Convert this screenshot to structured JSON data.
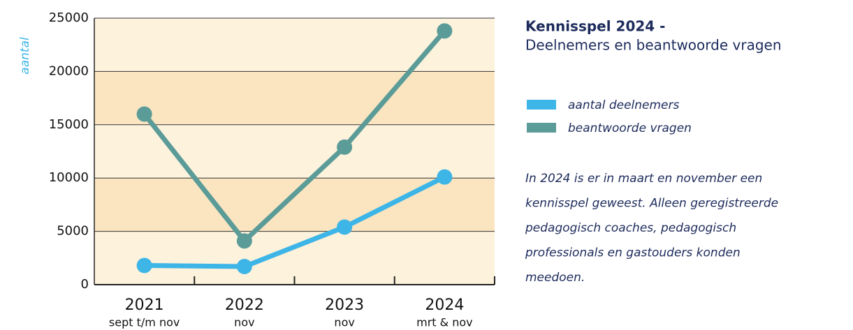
{
  "chart_data": {
    "type": "line",
    "title": "Kennisspel 2024 -",
    "subtitle": "Deelnemers en beantwoorde vragen",
    "y_label": "aantal",
    "categories": [
      "2021",
      "2022",
      "2023",
      "2024"
    ],
    "category_sublabels": [
      "sept t/m nov",
      "nov",
      "nov",
      "mrt & nov"
    ],
    "series": [
      {
        "name": "aantal deelnemers",
        "color": "#3db5e6",
        "values": [
          1800,
          1700,
          5400,
          10100
        ]
      },
      {
        "name": "beantwoorde vragen",
        "color": "#5b9b98",
        "values": [
          16000,
          4100,
          12900,
          23800
        ]
      }
    ],
    "ylim": [
      0,
      25000
    ],
    "yticks": [
      0,
      5000,
      10000,
      15000,
      20000,
      25000
    ],
    "grid": true,
    "band_colors": [
      "#fdf2dc",
      "#fbe5c1"
    ],
    "annotation": [
      "In 2024 is er in maart en november een",
      "kennisspel geweest. Alleen geregistreerde",
      "pedagogisch coaches, pedagogisch",
      "professionals en gastouders konden",
      "meedoen."
    ]
  }
}
